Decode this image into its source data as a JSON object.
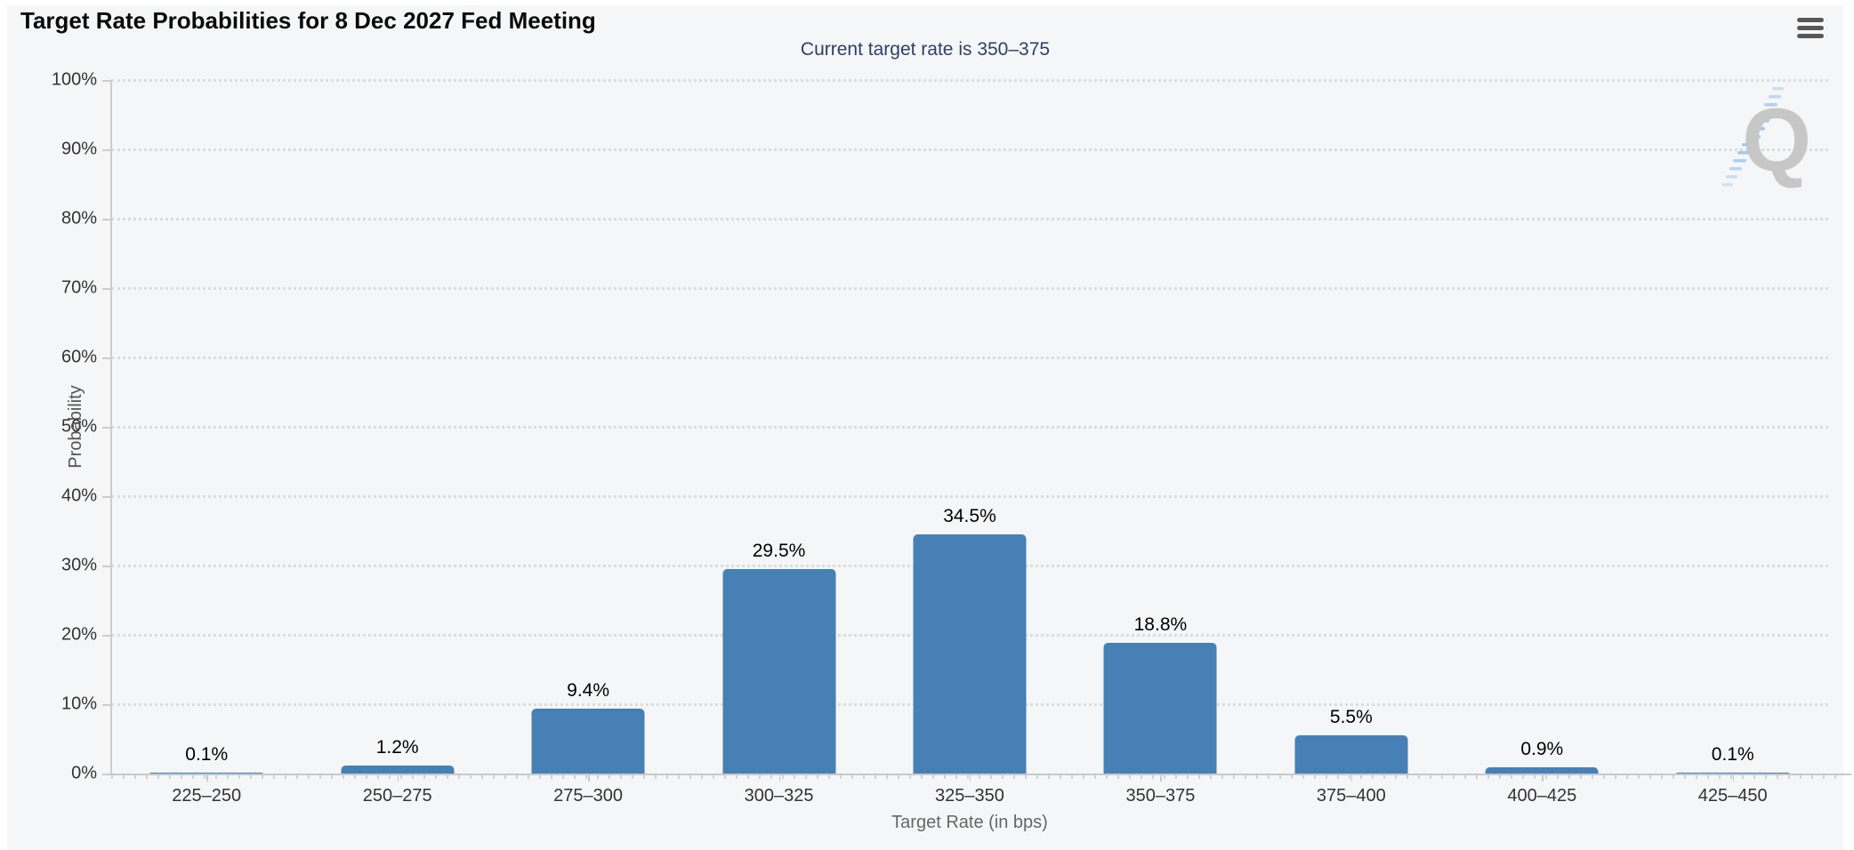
{
  "header": {
    "title": "Target Rate Probabilities for 8 Dec 2027 Fed Meeting",
    "menu_icon": "hamburger-menu-icon"
  },
  "chart_data": {
    "type": "bar",
    "title": "Target Rate Probabilities for 8 Dec 2027 Fed Meeting",
    "subtitle": "Current target rate is 350–375",
    "categories": [
      "225–250",
      "250–275",
      "275–300",
      "300–325",
      "325–350",
      "350–375",
      "375–400",
      "400–425",
      "425–450"
    ],
    "values": [
      0.1,
      1.2,
      9.4,
      29.5,
      34.5,
      18.8,
      5.5,
      0.9,
      0.1
    ],
    "value_labels": [
      "0.1%",
      "1.2%",
      "9.4%",
      "29.5%",
      "34.5%",
      "18.8%",
      "5.5%",
      "0.9%",
      "0.1%"
    ],
    "xlabel": "Target Rate (in bps)",
    "ylabel": "Probability",
    "ylim": [
      0,
      100
    ],
    "ytick_step": 10,
    "ytick_labels": [
      "0%",
      "10%",
      "20%",
      "30%",
      "40%",
      "50%",
      "60%",
      "70%",
      "80%",
      "90%",
      "100%"
    ],
    "grid": "horizontal dotted",
    "legend": "none",
    "watermark_letter": "Q",
    "colors": {
      "bar": "#4780b4",
      "subtitle_text": "#2f3f63",
      "plot_background": "#f5f6f7",
      "grid_dots": "#dcdcdc",
      "axis_line": "#c9c9c9",
      "watermark_gray": "#c7c7c7",
      "watermark_blue": "#9cc4ec"
    }
  }
}
